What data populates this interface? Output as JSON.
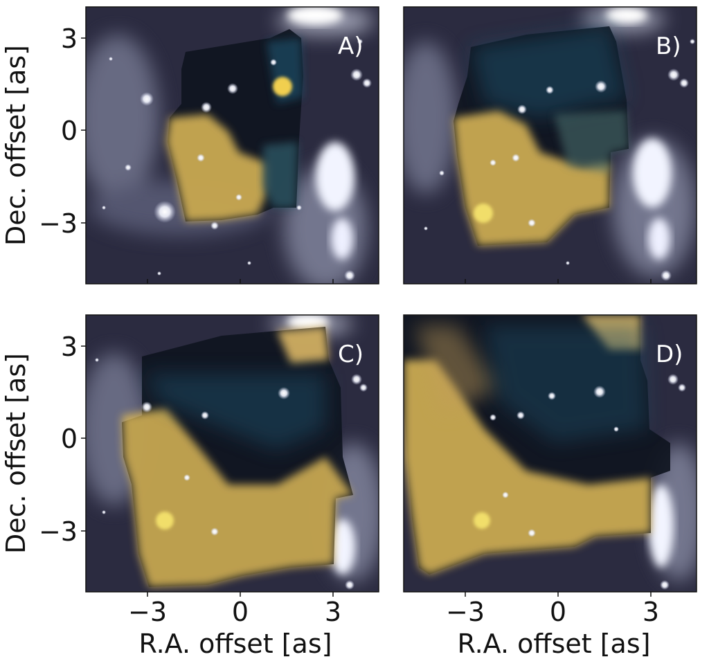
{
  "figure": {
    "ylabel": "Dec. offset [as]",
    "xlabel": "R.A. offset [as]",
    "x_ticks": [
      "−3",
      "0",
      "3"
    ],
    "y_ticks": [
      "3",
      "0",
      "−3"
    ],
    "colors": {
      "background_sky": "#2a2a3e",
      "nebula_haze": "#7c7f96",
      "overlay_warm": "#e8c25a",
      "overlay_cool": "#1c5a74",
      "star": "#ffffff"
    }
  },
  "panels": [
    {
      "label": "A)"
    },
    {
      "label": "B)"
    },
    {
      "label": "C)"
    },
    {
      "label": "D)"
    }
  ]
}
